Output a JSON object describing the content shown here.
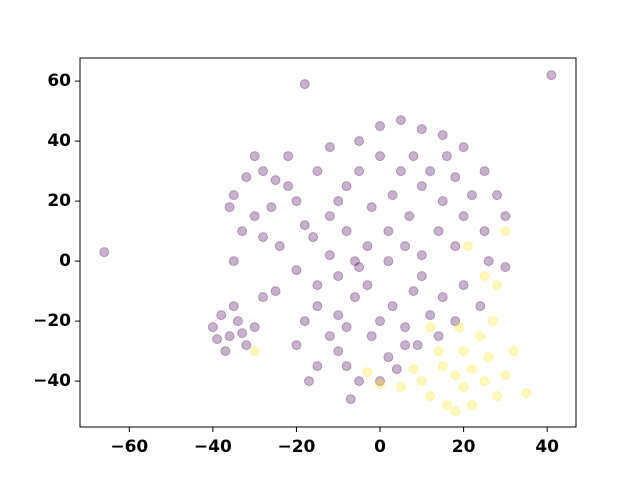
{
  "chart_data": {
    "type": "scatter",
    "series": [
      {
        "color": "#440154",
        "x": [
          -5,
          0,
          5,
          10,
          15,
          20,
          25,
          28,
          30,
          25,
          20,
          15,
          10,
          5,
          0,
          -5,
          -8,
          -10,
          -12,
          -8,
          -3,
          2,
          7,
          12,
          18,
          22,
          8,
          3,
          -2,
          14,
          -15,
          -12,
          6,
          18,
          26,
          30,
          -6,
          2,
          10,
          16,
          -35,
          -32,
          -28,
          -25,
          -22,
          -20,
          -26,
          -30,
          -33,
          -28,
          -24,
          -18,
          -36,
          -22,
          -30,
          -16,
          -20,
          -15,
          -10,
          -5,
          -25,
          -28,
          -35,
          -12,
          -18,
          -15,
          -12,
          -10,
          -8,
          -5,
          -2,
          0,
          3,
          6,
          9,
          12,
          15,
          18,
          -20,
          -15,
          -6,
          2,
          8,
          -3,
          10,
          14,
          -10,
          4,
          -17,
          0,
          20,
          24,
          6,
          -8,
          -40,
          -38,
          -36,
          -34,
          -32,
          -37,
          -35,
          -30,
          -39,
          -33,
          -66,
          -18,
          41,
          -7
        ],
        "values": [
          40,
          45,
          47,
          44,
          42,
          38,
          30,
          22,
          15,
          10,
          15,
          20,
          25,
          30,
          35,
          30,
          25,
          20,
          15,
          10,
          5,
          10,
          15,
          30,
          28,
          22,
          35,
          22,
          18,
          10,
          30,
          38,
          5,
          5,
          0,
          -2,
          0,
          0,
          2,
          35,
          22,
          28,
          30,
          27,
          25,
          20,
          18,
          15,
          10,
          8,
          5,
          12,
          18,
          35,
          35,
          8,
          -3,
          -8,
          -5,
          -2,
          -10,
          -12,
          0,
          2,
          -20,
          -15,
          -25,
          -30,
          -35,
          -40,
          -25,
          -20,
          -15,
          -22,
          -28,
          -18,
          -12,
          -20,
          -28,
          -35,
          -12,
          -32,
          -10,
          -8,
          -5,
          -25,
          -18,
          -36,
          -40,
          -40,
          -8,
          -15,
          -28,
          -22,
          -22,
          -18,
          -25,
          -20,
          -28,
          -30,
          -15,
          -22,
          -26,
          -24,
          3,
          59,
          62,
          -46
        ]
      },
      {
        "color": "#fde725",
        "x": [
          10,
          15,
          18,
          20,
          22,
          25,
          28,
          30,
          12,
          16,
          20,
          24,
          26,
          14,
          8,
          5,
          32,
          35,
          18,
          22,
          0,
          -3,
          -30,
          21,
          28,
          25,
          30,
          19,
          27,
          12
        ],
        "values": [
          -40,
          -35,
          -38,
          -42,
          -36,
          -40,
          -45,
          -38,
          -45,
          -48,
          -30,
          -25,
          -32,
          -30,
          -36,
          -42,
          -30,
          -44,
          -50,
          -48,
          -41,
          -37,
          -30,
          5,
          -8,
          -5,
          10,
          -22,
          -20,
          -22
        ]
      }
    ],
    "xlim": [
      -71.8,
      46.9
    ],
    "ylim": [
      -55.3,
      67.7
    ],
    "xticks": [
      {
        "value": -60,
        "label": "−60"
      },
      {
        "value": -40,
        "label": "−40"
      },
      {
        "value": -20,
        "label": "−20"
      },
      0,
      20,
      40
    ],
    "yticks": [
      {
        "value": -40,
        "label": "−40"
      },
      {
        "value": -20,
        "label": "−20"
      },
      0,
      20,
      40,
      60
    ],
    "opacity": 0.3
  }
}
